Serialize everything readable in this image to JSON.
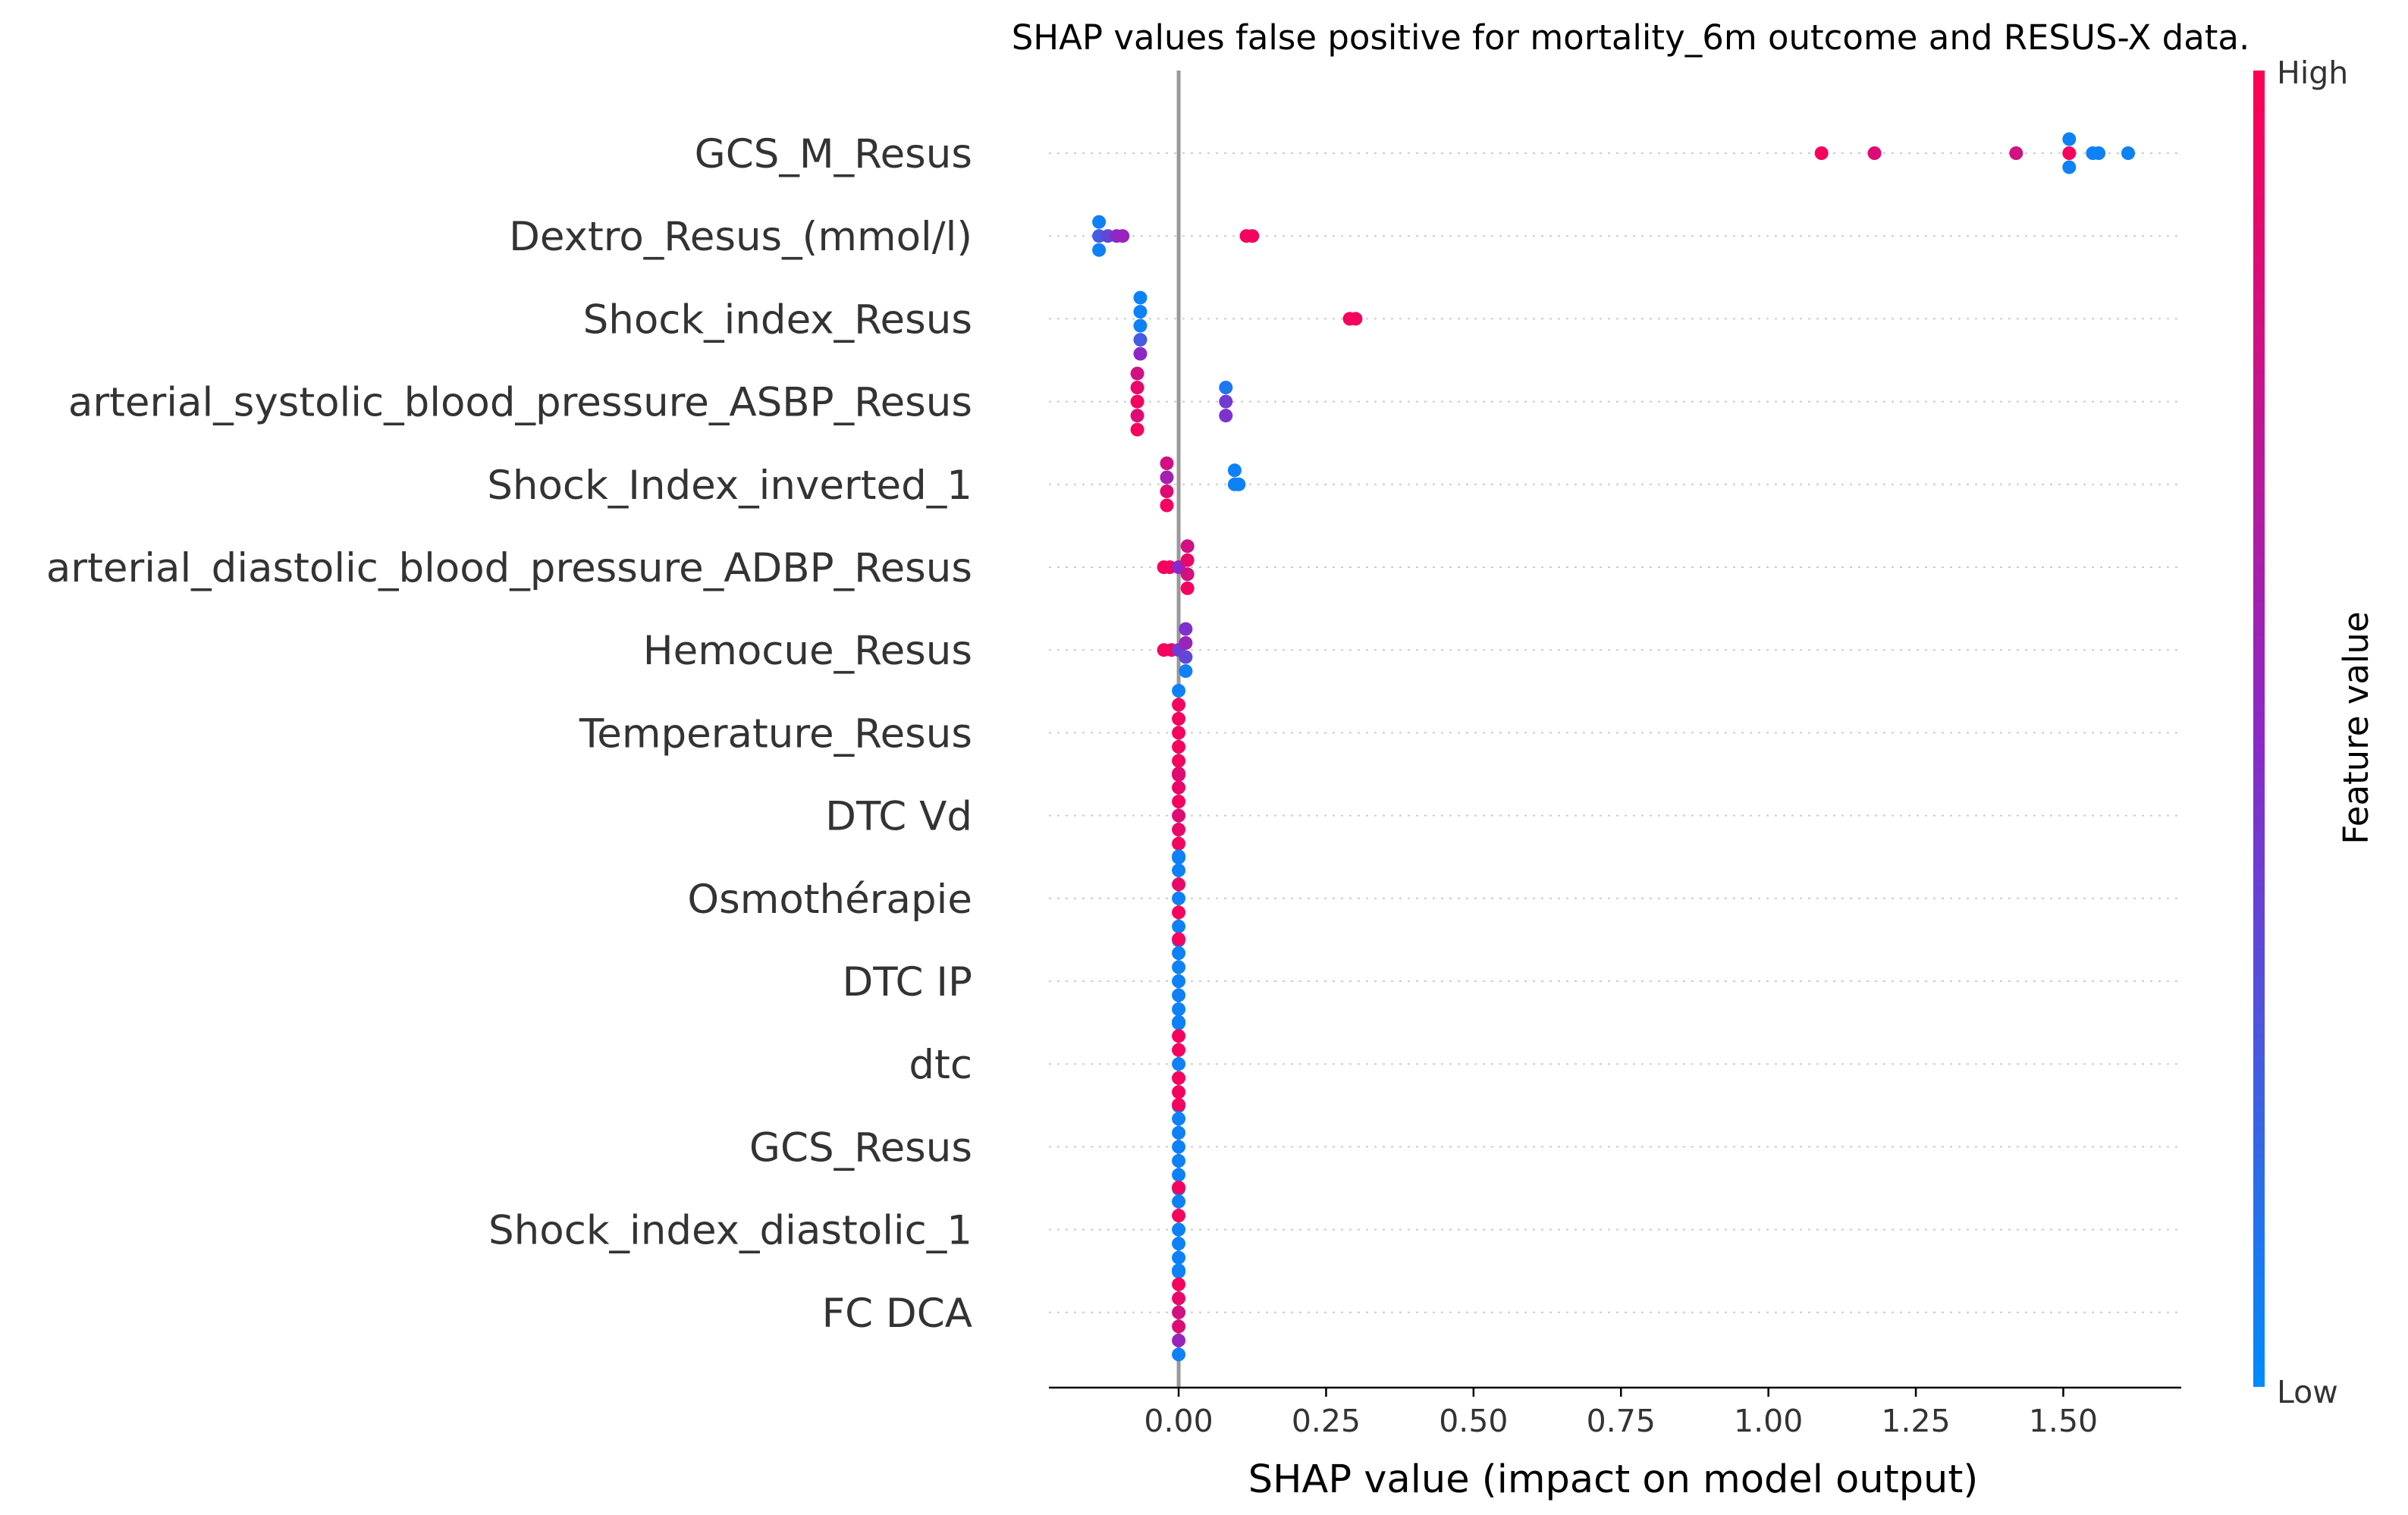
{
  "chart_data": {
    "type": "scatter",
    "title": "SHAP values false positive for mortality_6m outcome and RESUS-X data.",
    "xlabel": "SHAP value (impact on model output)",
    "xlim": [
      -0.22,
      1.7
    ],
    "xticks": [
      0.0,
      0.25,
      0.5,
      0.75,
      1.0,
      1.25,
      1.5
    ],
    "xtick_labels": [
      "0.00",
      "0.25",
      "0.50",
      "0.75",
      "1.00",
      "1.25",
      "1.50"
    ],
    "grid": "horizontal-dotted",
    "colorbar": {
      "title": "Feature value",
      "high_label": "High",
      "low_label": "Low",
      "low_color": "#008bfb",
      "mid_color": "#8c28c8",
      "high_color": "#ff0052"
    },
    "features": [
      {
        "name": "GCS_M_Resus",
        "points": [
          {
            "x": 1.09,
            "y": 0.0,
            "v": 0.95
          },
          {
            "x": 1.18,
            "y": 0.0,
            "v": 0.85
          },
          {
            "x": 1.42,
            "y": 0.0,
            "v": 0.8
          },
          {
            "x": 1.51,
            "y": 0.0,
            "v": 0.95
          },
          {
            "x": 1.51,
            "y": 1.0,
            "v": 0.05
          },
          {
            "x": 1.51,
            "y": -1.0,
            "v": 0.05
          },
          {
            "x": 1.55,
            "y": 0.0,
            "v": 0.05
          },
          {
            "x": 1.56,
            "y": 0.0,
            "v": 0.05
          },
          {
            "x": 1.61,
            "y": 0.0,
            "v": 0.05
          }
        ]
      },
      {
        "name": "Dextro_Resus_(mmol/l)",
        "points": [
          {
            "x": -0.135,
            "y": 1.0,
            "v": 0.05
          },
          {
            "x": -0.135,
            "y": 0.0,
            "v": 0.25
          },
          {
            "x": -0.135,
            "y": -1.0,
            "v": 0.05
          },
          {
            "x": -0.12,
            "y": 0.0,
            "v": 0.35
          },
          {
            "x": -0.105,
            "y": 0.0,
            "v": 0.5
          },
          {
            "x": -0.095,
            "y": 0.0,
            "v": 0.55
          },
          {
            "x": 0.115,
            "y": 0.0,
            "v": 0.95
          },
          {
            "x": 0.125,
            "y": 0.0,
            "v": 0.95
          }
        ]
      },
      {
        "name": "Shock_index_Resus",
        "points": [
          {
            "x": -0.065,
            "y": 1.5,
            "v": 0.05
          },
          {
            "x": -0.065,
            "y": 0.5,
            "v": 0.05
          },
          {
            "x": -0.065,
            "y": -0.5,
            "v": 0.05
          },
          {
            "x": -0.065,
            "y": -1.5,
            "v": 0.25
          },
          {
            "x": -0.065,
            "y": -2.5,
            "v": 0.5
          },
          {
            "x": 0.29,
            "y": 0.0,
            "v": 0.95
          },
          {
            "x": 0.3,
            "y": 0.0,
            "v": 0.95
          }
        ]
      },
      {
        "name": "arterial_systolic_blood_pressure_ASBP_Resus",
        "points": [
          {
            "x": -0.07,
            "y": 2.0,
            "v": 0.8
          },
          {
            "x": -0.07,
            "y": 1.0,
            "v": 0.9
          },
          {
            "x": -0.07,
            "y": 0.0,
            "v": 0.95
          },
          {
            "x": -0.07,
            "y": -1.0,
            "v": 0.85
          },
          {
            "x": -0.07,
            "y": -2.0,
            "v": 0.95
          },
          {
            "x": 0.08,
            "y": 1.0,
            "v": 0.1
          },
          {
            "x": 0.08,
            "y": 0.0,
            "v": 0.4
          },
          {
            "x": 0.08,
            "y": -1.0,
            "v": 0.45
          }
        ]
      },
      {
        "name": "Shock_Index_inverted_1",
        "points": [
          {
            "x": -0.02,
            "y": 1.5,
            "v": 0.8
          },
          {
            "x": -0.02,
            "y": 0.5,
            "v": 0.6
          },
          {
            "x": -0.02,
            "y": -0.5,
            "v": 0.85
          },
          {
            "x": -0.02,
            "y": -1.5,
            "v": 0.95
          },
          {
            "x": 0.095,
            "y": 1.0,
            "v": 0.05
          },
          {
            "x": 0.095,
            "y": 0.0,
            "v": 0.05
          },
          {
            "x": 0.102,
            "y": 0.0,
            "v": 0.05
          }
        ]
      },
      {
        "name": "arterial_diastolic_blood_pressure_ADBP_Resus",
        "points": [
          {
            "x": -0.025,
            "y": 0.0,
            "v": 0.95
          },
          {
            "x": -0.015,
            "y": 0.0,
            "v": 0.95
          },
          {
            "x": 0.0,
            "y": 0.0,
            "v": 0.5
          },
          {
            "x": 0.015,
            "y": 1.5,
            "v": 0.8
          },
          {
            "x": 0.015,
            "y": 0.5,
            "v": 0.9
          },
          {
            "x": 0.015,
            "y": -0.5,
            "v": 0.8
          },
          {
            "x": 0.015,
            "y": -1.5,
            "v": 0.95
          }
        ]
      },
      {
        "name": "Hemocue_Resus",
        "points": [
          {
            "x": -0.025,
            "y": 0.0,
            "v": 0.95
          },
          {
            "x": -0.012,
            "y": 0.0,
            "v": 0.95
          },
          {
            "x": 0.0,
            "y": 0.0,
            "v": 0.4
          },
          {
            "x": 0.012,
            "y": 1.5,
            "v": 0.45
          },
          {
            "x": 0.012,
            "y": 0.5,
            "v": 0.55
          },
          {
            "x": 0.012,
            "y": -0.5,
            "v": 0.35
          },
          {
            "x": 0.012,
            "y": -1.5,
            "v": 0.05
          }
        ]
      },
      {
        "name": "Temperature_Resus",
        "points": [
          {
            "x": 0.0,
            "y": 3.0,
            "v": 0.05
          },
          {
            "x": 0.0,
            "y": 2.0,
            "v": 0.95
          },
          {
            "x": 0.0,
            "y": 1.0,
            "v": 0.95
          },
          {
            "x": 0.0,
            "y": 0.0,
            "v": 0.95
          },
          {
            "x": 0.0,
            "y": -1.0,
            "v": 0.95
          },
          {
            "x": 0.0,
            "y": -2.0,
            "v": 0.95
          },
          {
            "x": 0.0,
            "y": -3.0,
            "v": 0.95
          }
        ]
      },
      {
        "name": "DTC Vd",
        "points": [
          {
            "x": 0.0,
            "y": 3.0,
            "v": 0.85
          },
          {
            "x": 0.0,
            "y": 2.0,
            "v": 0.9
          },
          {
            "x": 0.0,
            "y": 1.0,
            "v": 0.95
          },
          {
            "x": 0.0,
            "y": 0.0,
            "v": 0.85
          },
          {
            "x": 0.0,
            "y": -1.0,
            "v": 0.9
          },
          {
            "x": 0.0,
            "y": -2.0,
            "v": 0.95
          },
          {
            "x": 0.0,
            "y": -3.0,
            "v": 0.05
          }
        ]
      },
      {
        "name": "Osmothérapie",
        "points": [
          {
            "x": 0.0,
            "y": 3.0,
            "v": 0.05
          },
          {
            "x": 0.0,
            "y": 2.0,
            "v": 0.05
          },
          {
            "x": 0.0,
            "y": 1.0,
            "v": 0.9
          },
          {
            "x": 0.0,
            "y": 0.0,
            "v": 0.05
          },
          {
            "x": 0.0,
            "y": -1.0,
            "v": 0.95
          },
          {
            "x": 0.0,
            "y": -2.0,
            "v": 0.05
          },
          {
            "x": 0.0,
            "y": -3.0,
            "v": 0.05
          }
        ]
      },
      {
        "name": "DTC IP",
        "points": [
          {
            "x": 0.0,
            "y": 3.0,
            "v": 0.95
          },
          {
            "x": 0.0,
            "y": 2.0,
            "v": 0.05
          },
          {
            "x": 0.0,
            "y": 1.0,
            "v": 0.05
          },
          {
            "x": 0.0,
            "y": 0.0,
            "v": 0.05
          },
          {
            "x": 0.0,
            "y": -1.0,
            "v": 0.05
          },
          {
            "x": 0.0,
            "y": -2.0,
            "v": 0.05
          },
          {
            "x": 0.0,
            "y": -3.0,
            "v": 0.05
          }
        ]
      },
      {
        "name": "dtc",
        "points": [
          {
            "x": 0.0,
            "y": 3.0,
            "v": 0.05
          },
          {
            "x": 0.0,
            "y": 2.0,
            "v": 0.95
          },
          {
            "x": 0.0,
            "y": 1.0,
            "v": 0.95
          },
          {
            "x": 0.0,
            "y": 0.0,
            "v": 0.05
          },
          {
            "x": 0.0,
            "y": -1.0,
            "v": 0.95
          },
          {
            "x": 0.0,
            "y": -2.0,
            "v": 0.95
          },
          {
            "x": 0.0,
            "y": -3.0,
            "v": 0.05
          }
        ]
      },
      {
        "name": "GCS_Resus",
        "points": [
          {
            "x": 0.0,
            "y": 3.0,
            "v": 0.95
          },
          {
            "x": 0.0,
            "y": 2.0,
            "v": 0.05
          },
          {
            "x": 0.0,
            "y": 1.0,
            "v": 0.05
          },
          {
            "x": 0.0,
            "y": 0.0,
            "v": 0.05
          },
          {
            "x": 0.0,
            "y": -1.0,
            "v": 0.05
          },
          {
            "x": 0.0,
            "y": -2.0,
            "v": 0.05
          },
          {
            "x": 0.0,
            "y": -3.0,
            "v": 0.05
          }
        ]
      },
      {
        "name": "Shock_index_diastolic_1",
        "points": [
          {
            "x": 0.0,
            "y": 3.0,
            "v": 0.95
          },
          {
            "x": 0.0,
            "y": 2.0,
            "v": 0.05
          },
          {
            "x": 0.0,
            "y": 1.0,
            "v": 0.95
          },
          {
            "x": 0.0,
            "y": 0.0,
            "v": 0.05
          },
          {
            "x": 0.0,
            "y": -1.0,
            "v": 0.05
          },
          {
            "x": 0.0,
            "y": -2.0,
            "v": 0.05
          },
          {
            "x": 0.0,
            "y": -3.0,
            "v": 0.05
          }
        ]
      },
      {
        "name": "FC  DCA",
        "points": [
          {
            "x": 0.0,
            "y": 3.0,
            "v": 0.05
          },
          {
            "x": 0.0,
            "y": 2.0,
            "v": 0.95
          },
          {
            "x": 0.0,
            "y": 1.0,
            "v": 0.9
          },
          {
            "x": 0.0,
            "y": 0.0,
            "v": 0.8
          },
          {
            "x": 0.0,
            "y": -1.0,
            "v": 0.85
          },
          {
            "x": 0.0,
            "y": -2.0,
            "v": 0.55
          },
          {
            "x": 0.0,
            "y": -3.0,
            "v": 0.05
          }
        ]
      }
    ]
  }
}
